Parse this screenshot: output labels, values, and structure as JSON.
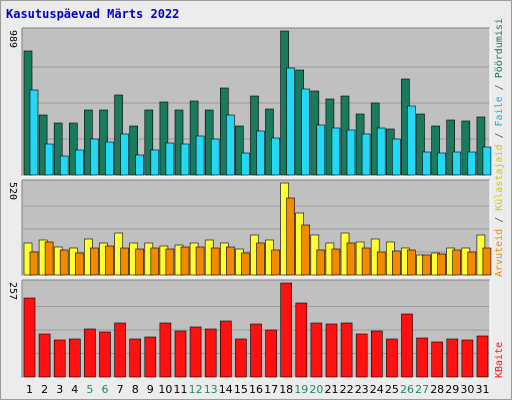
{
  "title": "Kasutuspäevad Märts 2022",
  "colors": {
    "pages": "#1a7a5e",
    "files": "#22d8f5",
    "hits_yellow": "#ffff33",
    "hits_orange": "#f28a00",
    "kbytes": "#ff1111",
    "weekend": "#228866",
    "weekday": "#000000",
    "scale": "#000000",
    "panel_bg": "#c0c0c0"
  },
  "legend": {
    "right_top": [
      {
        "text": "Pöördumisi",
        "color": "#1a7a5e"
      },
      {
        "text": " / ",
        "color": "#555555"
      },
      {
        "text": "Faile",
        "color": "#22aadd"
      },
      {
        "text": " / ",
        "color": "#555555"
      },
      {
        "text": "Külastajaid",
        "color": "#cccc00"
      },
      {
        "text": " / ",
        "color": "#555555"
      },
      {
        "text": "Arvuteid",
        "color": "#f28a00"
      }
    ],
    "right_bottom": "KBaite"
  },
  "chart_data": {
    "type": "bar",
    "title": "Kasutuspäevad Märts 2022",
    "categories": [
      "1",
      "2",
      "3",
      "4",
      "5",
      "6",
      "7",
      "8",
      "9",
      "10",
      "11",
      "12",
      "13",
      "14",
      "15",
      "16",
      "17",
      "18",
      "19",
      "20",
      "21",
      "22",
      "23",
      "24",
      "25",
      "26",
      "27",
      "28",
      "29",
      "30",
      "31"
    ],
    "weekend_days": [
      "5",
      "6",
      "12",
      "13",
      "19",
      "20",
      "26",
      "27"
    ],
    "panels": [
      {
        "scale_label": "989",
        "max": 989,
        "series": [
          {
            "name": "Pöördumisi",
            "values": [
              855,
              410,
              355,
              355,
              445,
              445,
              550,
              335,
              445,
              500,
              445,
              505,
              445,
              600,
              335,
              545,
              450,
              989,
              720,
              575,
              520,
              545,
              420,
              495,
              315,
              660,
              420,
              335,
              375,
              370,
              395
            ]
          },
          {
            "name": "Faile",
            "values": [
              585,
              210,
              130,
              170,
              250,
              230,
              285,
              135,
              175,
              220,
              215,
              270,
              250,
              410,
              150,
              300,
              255,
              735,
              590,
              340,
              320,
              310,
              280,
              325,
              245,
              475,
              155,
              150,
              155,
              160,
              190
            ]
          }
        ]
      },
      {
        "scale_label": "520",
        "max": 520,
        "series": [
          {
            "name": "Külastajaid",
            "values": [
              180,
              195,
              160,
              150,
              205,
              180,
              235,
              180,
              180,
              165,
              170,
              180,
              195,
              180,
              145,
              225,
              200,
              520,
              350,
              225,
              180,
              235,
              185,
              205,
              185,
              155,
              115,
              125,
              150,
              150,
              225
            ]
          },
          {
            "name": "Arvuteid",
            "values": [
              130,
              185,
              140,
              125,
              150,
              165,
              155,
              145,
              150,
              145,
              160,
              160,
              150,
              160,
              125,
              180,
              140,
              435,
              285,
              140,
              145,
              180,
              150,
              130,
              135,
              140,
              115,
              120,
              140,
              130,
              150
            ]
          }
        ]
      },
      {
        "scale_label": "257",
        "max": 257,
        "series": [
          {
            "name": "KBaite",
            "values": [
              217,
              118,
              100,
              103,
              130,
              123,
              148,
              104,
              110,
              148,
              125,
              137,
              130,
              153,
              103,
              146,
              128,
              257,
              203,
              148,
              145,
              147,
              118,
              127,
              103,
              172,
              107,
              96,
              105,
              102,
              113
            ]
          }
        ]
      }
    ]
  }
}
